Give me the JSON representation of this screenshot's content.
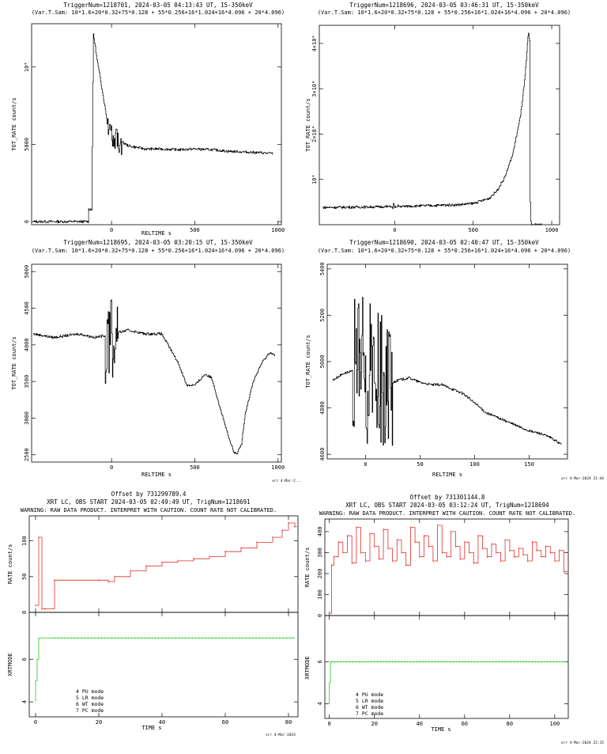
{
  "colors": {
    "bat": "#000000",
    "rate": "#e0302a",
    "mode": "#3fcf3f",
    "axis": "#000000"
  },
  "chart_data": [
    {
      "type": "line",
      "title": "TriggerNum=1218701, 2024-03-05 04:13:43 UT, 15-350keV",
      "subtitle": "(Var.T.Sam: 10*1.6+20*0.32+75*0.128 + 55*0.256+16*1.024+16*4.096 + 20*4.096)",
      "xlabel": "RELTIME  s",
      "ylabel": "TOT_RATE  count/s",
      "xlim": [
        -480,
        1020
      ],
      "ylim": [
        -200,
        12800
      ],
      "xticks": [
        0,
        500,
        1000
      ],
      "xtick_labels": [
        "0",
        "500",
        "1000"
      ],
      "yticks": [
        0,
        5000,
        10000
      ],
      "ytick_labels": [
        "0",
        "5000",
        "10⁴"
      ],
      "series": [
        {
          "x": [
            -470,
            -140,
            -140,
            -120,
            -110,
            -90,
            -60,
            -30,
            0,
            40,
            100,
            200,
            300,
            400,
            500,
            600,
            700,
            800,
            900,
            970
          ],
          "y": [
            0,
            0,
            800,
            800,
            12200,
            10600,
            8700,
            6700,
            5800,
            5300,
            4900,
            4700,
            4700,
            4650,
            4700,
            4650,
            4550,
            4500,
            4450,
            4400
          ]
        }
      ],
      "noise": [
        {
          "x_from": -30,
          "x_to": 60,
          "amp": 900
        }
      ],
      "footer": ""
    },
    {
      "type": "line",
      "title": "TriggerNum=1218696, 2024-03-05 03:46:31 UT, 15-350keV",
      "subtitle": "(Var.T.Sam: 10*1.6+20*0.32+75*0.128 + 55*0.256+16*1.024+16*4.096 + 20*4.096)",
      "xlabel": "",
      "ylabel": "TOT_RATE  count/s",
      "xlim": [
        -480,
        1050
      ],
      "ylim": [
        0,
        44000
      ],
      "xticks": [
        0,
        500,
        1000
      ],
      "xtick_labels": [
        "0",
        "500",
        "1000"
      ],
      "yticks": [
        10000,
        20000,
        30000,
        40000
      ],
      "ytick_labels": [
        "10⁴",
        "2×10⁴",
        "3×10⁴",
        "4×10⁴"
      ],
      "series": [
        {
          "x": [
            -460,
            -200,
            0,
            200,
            400,
            500,
            600,
            650,
            700,
            750,
            800,
            830,
            850,
            860,
            860,
            940
          ],
          "y": [
            3800,
            3900,
            4000,
            4200,
            4400,
            4700,
            5800,
            7500,
            10500,
            15500,
            24000,
            33000,
            42500,
            40000,
            0,
            0
          ]
        }
      ],
      "noise": [
        {
          "x_from": -30,
          "x_to": 30,
          "amp": 700
        },
        {
          "x_from": 862,
          "x_to": 868,
          "amp": 6000
        }
      ],
      "footer": ""
    },
    {
      "type": "line",
      "title": "TriggerNum=1218695, 2024-03-05 03:20:15 UT, 15-350keV",
      "subtitle": "(Var.T.Sam: 10*1.6+20*0.32+75*0.128 + 55*0.256+16*1.024+16*4.096 + 20*4.096)",
      "xlabel": "RELTIME  s",
      "ylabel": "TOT_RATE  count/s",
      "xlim": [
        -480,
        1020
      ],
      "ylim": [
        2400,
        5100
      ],
      "xticks": [
        0,
        500,
        1000
      ],
      "xtick_labels": [
        "0",
        "500",
        "1000"
      ],
      "yticks": [
        2500,
        3000,
        3500,
        4000,
        4500,
        5000
      ],
      "ytick_labels": [
        "2500",
        "3000",
        "3500",
        "4000",
        "4500",
        "5000"
      ],
      "series": [
        {
          "x": [
            -470,
            -350,
            -200,
            -100,
            0,
            100,
            200,
            300,
            350,
            400,
            450,
            500,
            560,
            600,
            650,
            700,
            730,
            750,
            780,
            800,
            850,
            900,
            950,
            980
          ],
          "y": [
            4150,
            4100,
            4150,
            4100,
            4150,
            4200,
            4150,
            4150,
            3950,
            3750,
            3450,
            3450,
            3600,
            3550,
            3150,
            2750,
            2550,
            2500,
            2650,
            3050,
            3500,
            3750,
            3900,
            3850
          ]
        }
      ],
      "noise": [
        {
          "x_from": -40,
          "x_to": 40,
          "amp": 700
        }
      ],
      "footer": "xrr 4-Mar-2..."
    },
    {
      "type": "line",
      "title": "TriggerNum=1218690, 2024-03-05 02:40:47 UT, 15-350keV",
      "subtitle": "(Var.T.Sam: 10*1.6+20*0.32+75*0.128 + 55*0.256+16*1.024+16*4.096 + 20*4.096)",
      "xlabel": "RELTIME  s",
      "ylabel": "TOT_RATE  count/s",
      "xlim": [
        -35,
        185
      ],
      "ylim": [
        4580,
        5420
      ],
      "xticks": [
        0,
        50,
        100,
        150
      ],
      "xtick_labels": [
        "0",
        "50",
        "100",
        "150"
      ],
      "yticks": [
        4600,
        4800,
        5000,
        5200,
        5400
      ],
      "ytick_labels": [
        "4600",
        "4800",
        "5000",
        "5200",
        "5400"
      ],
      "series": [
        {
          "x": [
            -30,
            -20,
            -10,
            0,
            10,
            20,
            30,
            40,
            50,
            60,
            70,
            80,
            90,
            100,
            110,
            120,
            130,
            140,
            150,
            160,
            170,
            180
          ],
          "y": [
            4920,
            4950,
            4960,
            4950,
            4930,
            4900,
            4920,
            4930,
            4910,
            4900,
            4900,
            4880,
            4860,
            4820,
            4780,
            4760,
            4740,
            4720,
            4700,
            4690,
            4670,
            4640
          ]
        }
      ],
      "noise": [
        {
          "x_from": -12,
          "x_to": 25,
          "amp": 330
        }
      ],
      "footer": "xrr  4-Mar-2024 21:44"
    }
  ],
  "xrt": [
    {
      "offset": "Offset by 731299789.4",
      "title": "XRT LC, OBS START 2024-03-05 02:49:49 UT, TrigNum=1218691",
      "warning": "WARNING: RAW DATA PRODUCT. INTERPRET WITH CAUTION. COUNT RATE NOT CALIBRATED.",
      "rate_ylabel": "RATE  count/s",
      "mode_ylabel": "XRTMODE",
      "xlabel": "TIME  s",
      "xlim": [
        -2,
        83
      ],
      "xticks": [
        0,
        20,
        40,
        60,
        80
      ],
      "xtick_labels": [
        "0",
        "20",
        "40",
        "60",
        "80"
      ],
      "rate_ylim": [
        0,
        135
      ],
      "rate_yticks": [
        0,
        50,
        100
      ],
      "rate_ytick_labels": [
        "0",
        "50",
        "100"
      ],
      "rate": {
        "x": [
          0,
          1,
          2,
          3,
          6,
          20,
          23,
          25,
          30,
          35,
          40,
          45,
          50,
          55,
          60,
          65,
          70,
          75,
          78,
          80,
          82
        ],
        "y": [
          10,
          105,
          5,
          5,
          45,
          45,
          43,
          50,
          58,
          65,
          70,
          72,
          75,
          78,
          85,
          90,
          98,
          105,
          115,
          125,
          120
        ]
      },
      "mode_ylim": [
        3.3,
        8.2
      ],
      "mode_yticks": [
        4,
        6
      ],
      "mode_ytick_labels": [
        "4",
        "6"
      ],
      "mode": {
        "x": [
          0,
          0.5,
          1,
          6,
          82
        ],
        "y": [
          4,
          5,
          6,
          7,
          7
        ]
      },
      "legend": [
        "4 PU mode",
        "5 LR mode",
        "6 WT mode",
        "7 PC mode"
      ],
      "footer": "xrr  4-Mar-2024"
    },
    {
      "offset": "Offset by 731301144.8",
      "title": "XRT LC, OBS START 2024-03-05 03:12:24 UT, TrigNum=1218694",
      "warning": "WARNING: RAW DATA PRODUCT. INTERPRET WITH CAUTION. COUNT RATE NOT CALIBRATED.",
      "rate_ylabel": "RATE  count/s",
      "mode_ylabel": "XRTMODE",
      "xlabel": "TIME  s",
      "xlim": [
        -2,
        106
      ],
      "xticks": [
        0,
        20,
        40,
        60,
        80,
        100
      ],
      "xtick_labels": [
        "0",
        "20",
        "40",
        "60",
        "80",
        "100"
      ],
      "rate_ylim": [
        0,
        460
      ],
      "rate_yticks": [
        0,
        100,
        200,
        300,
        400
      ],
      "rate_ytick_labels": [
        "0",
        "100",
        "200",
        "300",
        "400"
      ],
      "rate": {
        "x": [
          0,
          1,
          2,
          4,
          6,
          8,
          10,
          12,
          14,
          16,
          18,
          20,
          22,
          24,
          26,
          28,
          30,
          32,
          34,
          36,
          38,
          40,
          42,
          44,
          46,
          48,
          50,
          52,
          54,
          56,
          58,
          60,
          62,
          64,
          66,
          68,
          70,
          72,
          74,
          76,
          78,
          80,
          82,
          84,
          86,
          88,
          90,
          92,
          94,
          96,
          98,
          100,
          102,
          104
        ],
        "y": [
          10,
          240,
          280,
          350,
          300,
          380,
          250,
          420,
          300,
          260,
          390,
          330,
          270,
          410,
          320,
          260,
          360,
          300,
          240,
          420,
          350,
          280,
          380,
          330,
          260,
          430,
          300,
          280,
          400,
          330,
          270,
          350,
          300,
          250,
          380,
          320,
          280,
          340,
          300,
          260,
          360,
          310,
          280,
          320,
          290,
          260,
          350,
          310,
          280,
          330,
          300,
          260,
          310,
          210
        ]
      },
      "mode_ylim": [
        3.3,
        8.2
      ],
      "mode_yticks": [
        4,
        6
      ],
      "mode_ytick_labels": [
        "4",
        "6"
      ],
      "mode": {
        "x": [
          0,
          0.5,
          1,
          105
        ],
        "y": [
          4,
          5,
          6,
          6
        ]
      },
      "legend": [
        "4 PU mode",
        "5 LR mode",
        "6 WT mode",
        "7 PC mode"
      ],
      "footer": "xrr  4-Mar-2024 22:15"
    }
  ]
}
